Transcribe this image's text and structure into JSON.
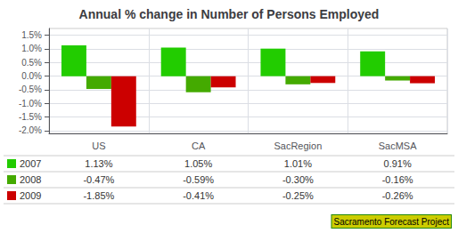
{
  "chart_data": {
    "type": "bar",
    "title": "Annual % change in Number of Persons Employed",
    "categories": [
      "US",
      "CA",
      "SacRegion",
      "SacMSA"
    ],
    "series": [
      {
        "name": "2007",
        "color": "#22cc00",
        "values": [
          0.0113,
          0.0105,
          0.0101,
          0.0091
        ],
        "value_labels": [
          "1.13%",
          "1.05%",
          "1.01%",
          "0.91%"
        ]
      },
      {
        "name": "2008",
        "color": "#44aa00",
        "values": [
          -0.0047,
          -0.0059,
          -0.003,
          -0.0016
        ],
        "value_labels": [
          "-0.47%",
          "-0.59%",
          "-0.30%",
          "-0.16%"
        ]
      },
      {
        "name": "2009",
        "color": "#cc0000",
        "values": [
          -0.0185,
          -0.0041,
          -0.0025,
          -0.0026
        ],
        "value_labels": [
          "-1.85%",
          "-0.41%",
          "-0.25%",
          "-0.26%"
        ]
      }
    ],
    "ylim": [
      -0.021,
      0.0175
    ],
    "yticks": [
      {
        "value": -0.02,
        "label": "-2.0%"
      },
      {
        "value": -0.015,
        "label": "-1.5%"
      },
      {
        "value": -0.01,
        "label": "-1.0%"
      },
      {
        "value": -0.005,
        "label": "-0.5%"
      },
      {
        "value": 0,
        "label": "0.0%"
      },
      {
        "value": 0.005,
        "label": "0.5%"
      },
      {
        "value": 0.01,
        "label": "1.0%"
      },
      {
        "value": 0.015,
        "label": "1.5%"
      }
    ],
    "grid": true,
    "annotations": [
      "Sacramento Forecast Project"
    ]
  }
}
